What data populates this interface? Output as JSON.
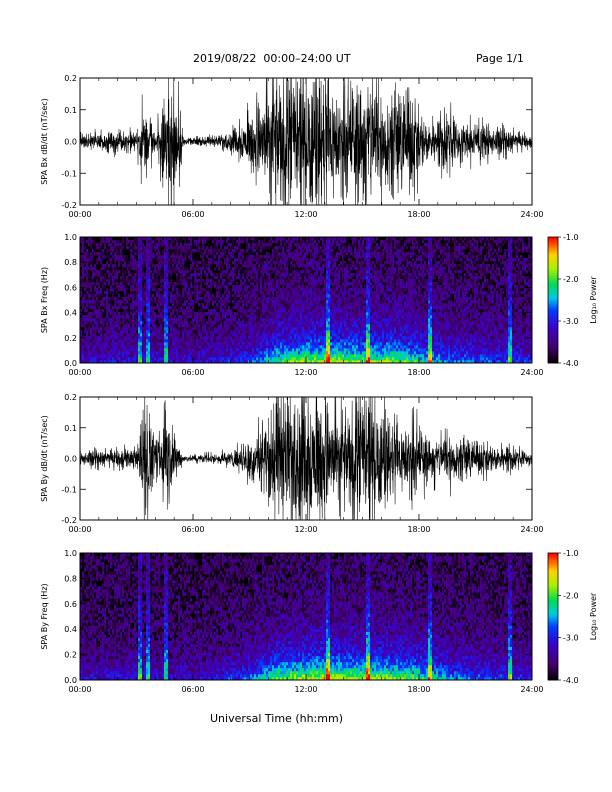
{
  "header": {
    "title": "2019/08/22  00:00–24:00 UT",
    "page": "Page 1/1"
  },
  "xaxis_title": "Universal Time (hh:mm)",
  "chart_data": [
    {
      "type": "line",
      "ylabel": "SPA Bx dB/dt (nT/sec)",
      "xlim": [
        0,
        24
      ],
      "ylim": [
        -0.2,
        0.2
      ],
      "xticks": [
        "00:00",
        "06:00",
        "12:00",
        "18:00",
        "24:00"
      ],
      "yticks": [
        "-0.2",
        "-0.1",
        "0.0",
        "0.1",
        "0.2"
      ],
      "series": [
        {
          "x": [
            0,
            1,
            2,
            3,
            3.3,
            4,
            4.6,
            5,
            5.5,
            6,
            7,
            8,
            9,
            9.5,
            10,
            10.5,
            11,
            11.5,
            12,
            12.5,
            13,
            13.5,
            14,
            14.5,
            15,
            15.5,
            16,
            16.5,
            17,
            17.5,
            18,
            18.5,
            19,
            19.5,
            20,
            21,
            22,
            23,
            24
          ],
          "amp": [
            0.02,
            0.025,
            0.03,
            0.03,
            0.09,
            0.035,
            0.12,
            0.2,
            0.01,
            0.01,
            0.015,
            0.025,
            0.08,
            0.13,
            0.17,
            0.2,
            0.2,
            0.2,
            0.2,
            0.2,
            0.2,
            0.17,
            0.15,
            0.16,
            0.2,
            0.2,
            0.15,
            0.14,
            0.13,
            0.15,
            0.09,
            0.06,
            0.06,
            0.1,
            0.06,
            0.05,
            0.04,
            0.035,
            0.015
          ]
        }
      ]
    },
    {
      "type": "heatmap",
      "ylabel": "SPA Bx Freq (Hz)",
      "xlim": [
        0,
        24
      ],
      "ylim": [
        0,
        1.0
      ],
      "xticks": [
        "00:00",
        "06:00",
        "12:00",
        "18:00",
        "24:00"
      ],
      "yticks": [
        "0.0",
        "0.2",
        "0.4",
        "0.6",
        "0.8",
        "1.0"
      ],
      "colorbar": {
        "label": "Log₁₀ Power",
        "range": [
          -4.0,
          -1.0
        ],
        "ticks": [
          "-4.0",
          "-3.0",
          "-2.0",
          "-1.0"
        ]
      },
      "activity": {
        "x": [
          0,
          3,
          6,
          9,
          10.5,
          12,
          13.5,
          15,
          16.5,
          18,
          19.5,
          21,
          24
        ],
        "level": [
          0.25,
          0.3,
          0.25,
          0.4,
          0.75,
          0.85,
          0.9,
          0.8,
          0.85,
          0.7,
          0.5,
          0.45,
          0.35
        ]
      },
      "spikes_hr": [
        3.15,
        3.6,
        4.6,
        13.2,
        15.3,
        18.6,
        22.8
      ]
    },
    {
      "type": "line",
      "ylabel": "SPA By dB/dt (nT/sec)",
      "xlim": [
        0,
        24
      ],
      "ylim": [
        -0.2,
        0.2
      ],
      "xticks": [
        "00:00",
        "06:00",
        "12:00",
        "18:00",
        "24:00"
      ],
      "yticks": [
        "-0.2",
        "-0.1",
        "0.0",
        "0.1",
        "0.2"
      ],
      "series": [
        {
          "x": [
            0,
            1,
            2,
            3,
            3.3,
            3.5,
            4,
            4.6,
            5,
            5.5,
            6,
            7,
            8,
            9,
            9.5,
            10,
            10.5,
            11,
            11.5,
            12,
            12.5,
            13,
            13.5,
            14,
            14.5,
            15,
            15.5,
            16,
            16.5,
            17,
            17.5,
            18,
            18.5,
            19,
            19.5,
            20,
            21,
            22,
            23,
            24
          ],
          "amp": [
            0.02,
            0.025,
            0.03,
            0.03,
            0.1,
            0.2,
            0.04,
            0.13,
            0.08,
            0.01,
            0.01,
            0.015,
            0.02,
            0.06,
            0.09,
            0.11,
            0.2,
            0.2,
            0.17,
            0.2,
            0.2,
            0.2,
            0.16,
            0.12,
            0.18,
            0.2,
            0.2,
            0.14,
            0.12,
            0.1,
            0.12,
            0.09,
            0.07,
            0.06,
            0.08,
            0.06,
            0.05,
            0.04,
            0.035,
            0.015
          ]
        }
      ]
    },
    {
      "type": "heatmap",
      "ylabel": "SPA By Freq (Hz)",
      "xlim": [
        0,
        24
      ],
      "ylim": [
        0,
        1.0
      ],
      "xticks": [
        "00:00",
        "06:00",
        "12:00",
        "18:00",
        "24:00"
      ],
      "yticks": [
        "0.0",
        "0.2",
        "0.4",
        "0.6",
        "0.8",
        "1.0"
      ],
      "colorbar": {
        "label": "Log₁₀ Power",
        "range": [
          -4.0,
          -1.0
        ],
        "ticks": [
          "-4.0",
          "-3.0",
          "-2.0",
          "-1.0"
        ]
      },
      "activity": {
        "x": [
          0,
          3,
          6,
          9,
          10.5,
          12,
          13.5,
          15,
          16.5,
          18,
          19.5,
          21,
          24
        ],
        "level": [
          0.25,
          0.3,
          0.25,
          0.45,
          0.8,
          0.9,
          0.95,
          0.85,
          0.85,
          0.75,
          0.55,
          0.45,
          0.35
        ]
      },
      "spikes_hr": [
        3.15,
        3.6,
        4.6,
        13.2,
        15.3,
        18.6,
        22.8
      ]
    }
  ]
}
